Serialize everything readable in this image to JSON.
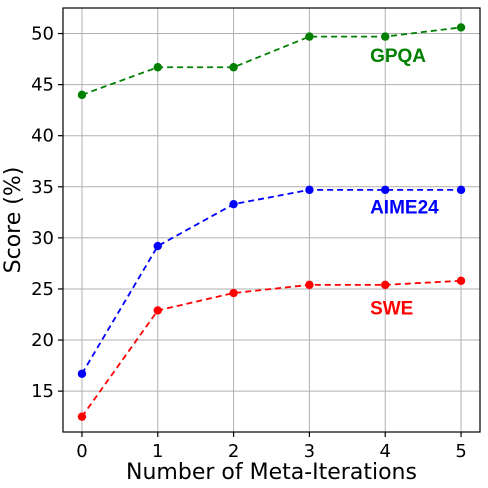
{
  "chart_data": {
    "type": "line",
    "xlabel": "Number of Meta-Iterations",
    "ylabel": "Score (%)",
    "x": [
      0,
      1,
      2,
      3,
      4,
      5
    ],
    "xlim": [
      -0.25,
      5.25
    ],
    "ylim": [
      11,
      52.5
    ],
    "xticks": [
      "0",
      "1",
      "2",
      "3",
      "4",
      "5"
    ],
    "yticks": [
      15,
      20,
      25,
      30,
      35,
      40,
      45,
      50
    ],
    "grid": true,
    "series": [
      {
        "name": "GPQA",
        "color": "#008000",
        "values": [
          44.0,
          46.7,
          46.7,
          49.7,
          49.7,
          50.6
        ]
      },
      {
        "name": "AIME24",
        "color": "#0000ff",
        "values": [
          16.7,
          29.2,
          33.3,
          34.7,
          34.7,
          34.7
        ]
      },
      {
        "name": "SWE",
        "color": "#ff0000",
        "values": [
          12.5,
          22.9,
          24.6,
          25.4,
          25.4,
          25.8
        ]
      }
    ]
  }
}
